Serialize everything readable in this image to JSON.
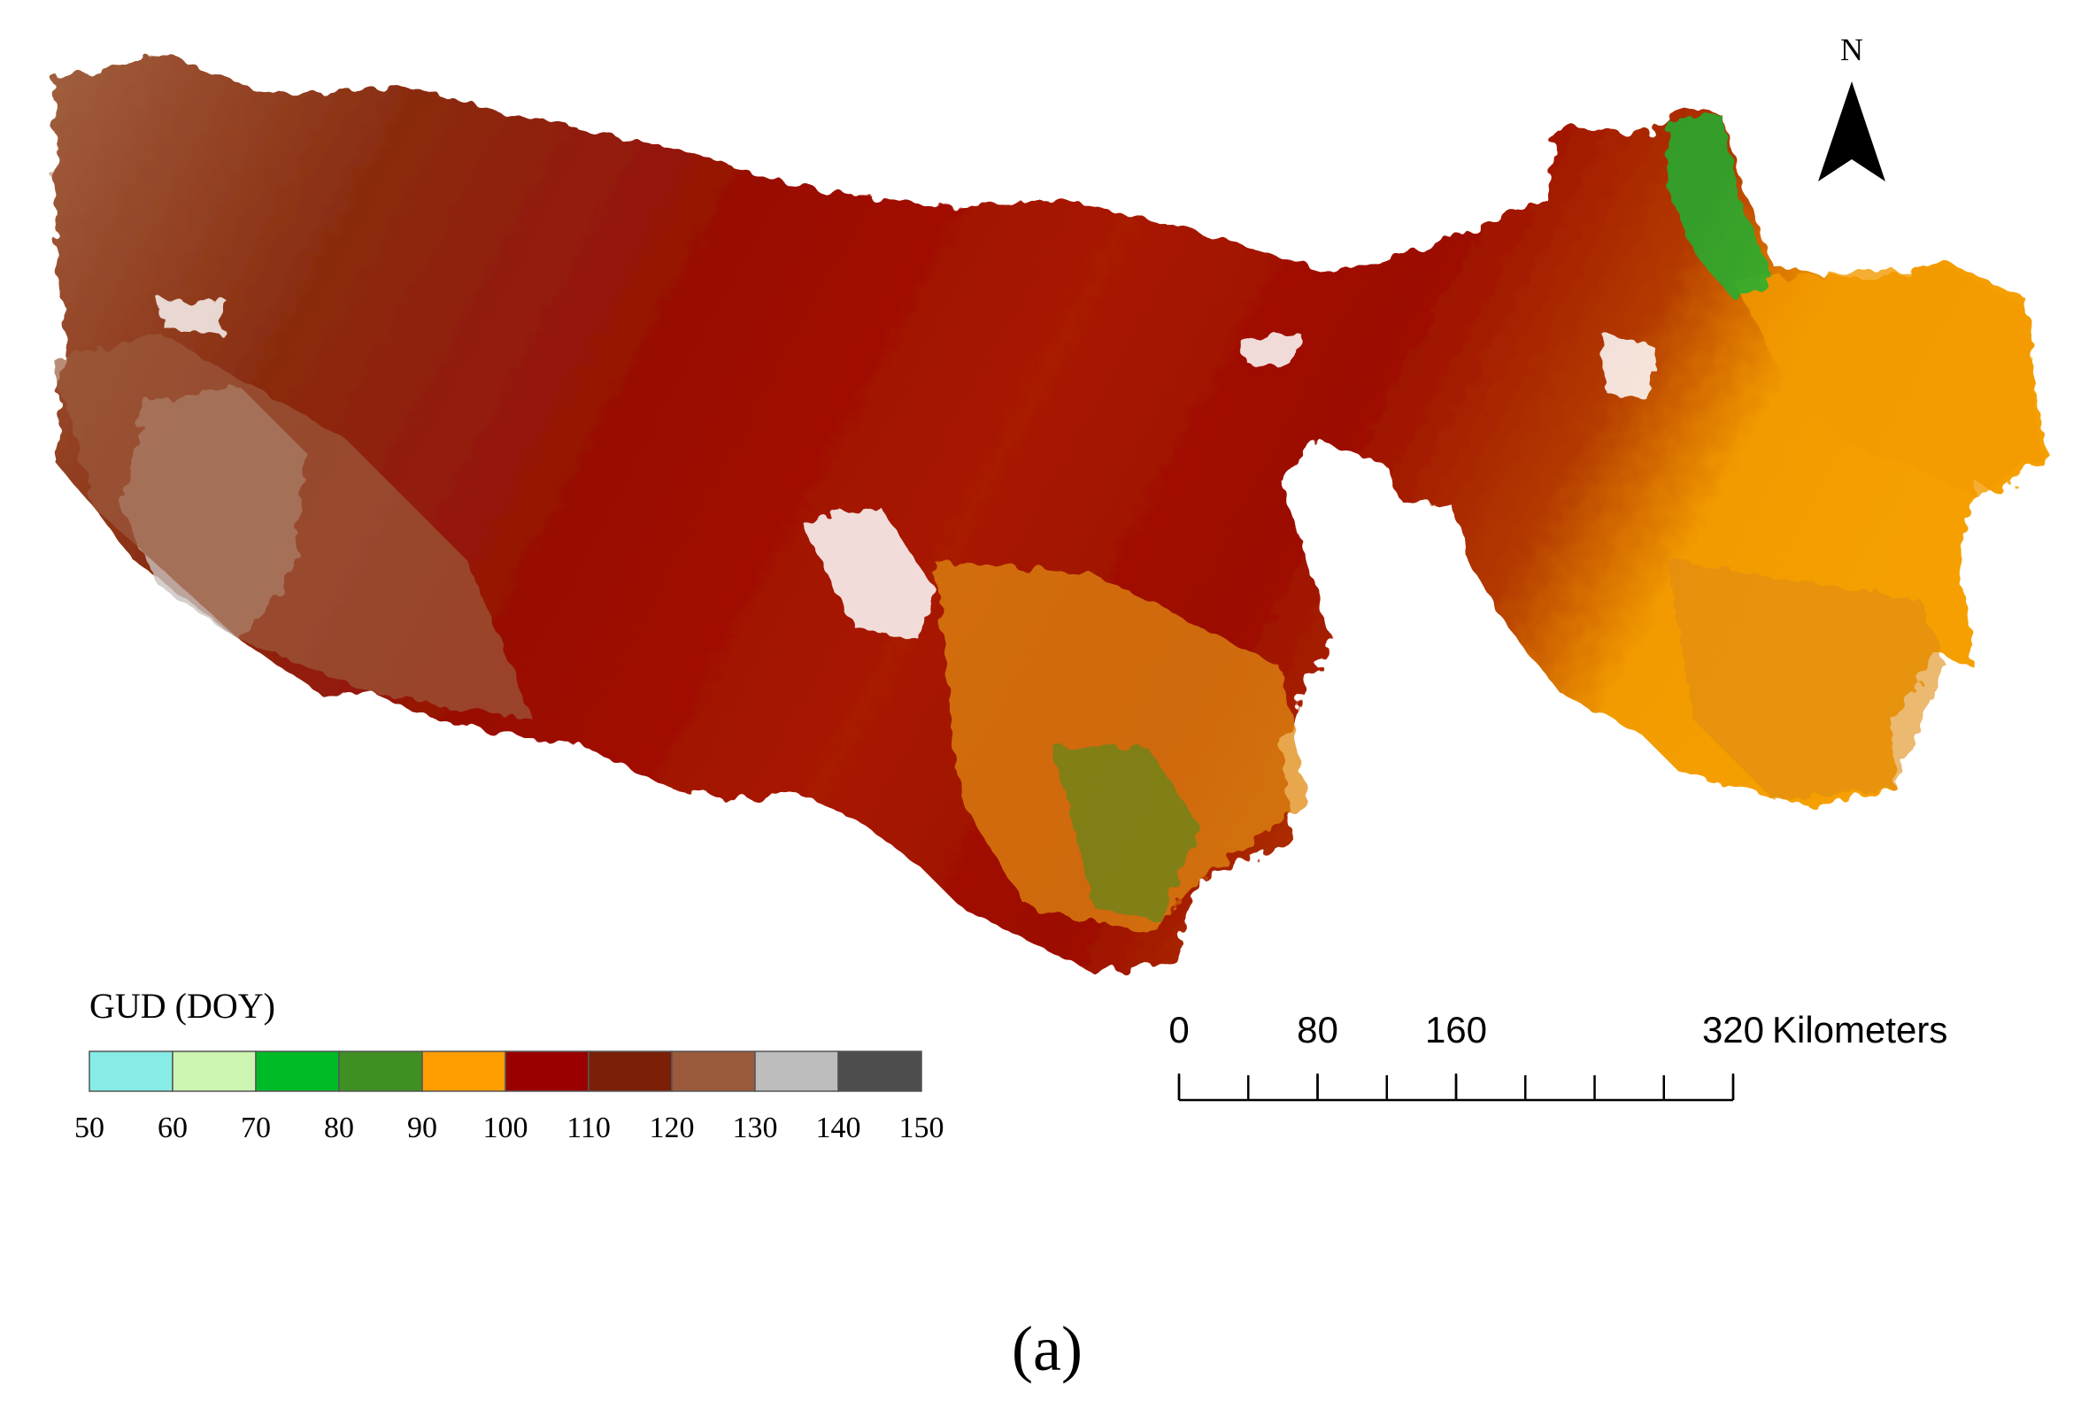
{
  "map": {
    "north_label": "N",
    "legend": {
      "title": "GUD (DOY)",
      "breaks": [
        50,
        60,
        70,
        80,
        90,
        100,
        110,
        120,
        130,
        140,
        150
      ],
      "colors": [
        "#87ece6",
        "#ccf5b2",
        "#00bb28",
        "#3f8f22",
        "#ff9e00",
        "#9b0000",
        "#7b1f06",
        "#9b5a3c",
        "#bdbdbd",
        "#4d4d4d"
      ]
    },
    "scale_bar": {
      "ticks": [
        0,
        80,
        160,
        320
      ],
      "unit": "Kilometers"
    },
    "caption": "(a)"
  }
}
